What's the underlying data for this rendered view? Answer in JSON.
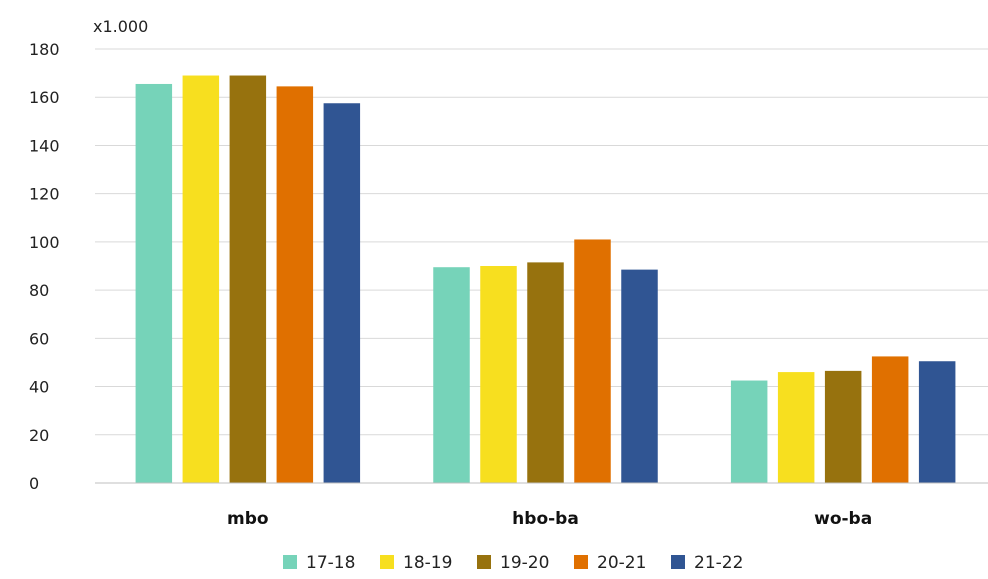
{
  "chart_data": {
    "type": "bar",
    "unit_label": "x1.000",
    "categories": [
      "mbo",
      "hbo-ba",
      "wo-ba"
    ],
    "series": [
      {
        "name": "17-18",
        "color": "#76d3b9",
        "values": [
          165.5,
          89.5,
          42.5
        ]
      },
      {
        "name": "18-19",
        "color": "#f7df1f",
        "values": [
          169,
          90,
          46
        ]
      },
      {
        "name": "19-20",
        "color": "#97720e",
        "values": [
          169,
          91.5,
          46.5
        ]
      },
      {
        "name": "20-21",
        "color": "#e07000",
        "values": [
          164.5,
          101,
          52.5
        ]
      },
      {
        "name": "21-22",
        "color": "#305593",
        "values": [
          157.5,
          88.5,
          50.5
        ]
      }
    ],
    "ylim": [
      0,
      180
    ],
    "yticks": [
      0,
      20,
      40,
      60,
      80,
      100,
      120,
      140,
      160,
      180
    ],
    "grid": true,
    "legend_position": "bottom-center"
  }
}
